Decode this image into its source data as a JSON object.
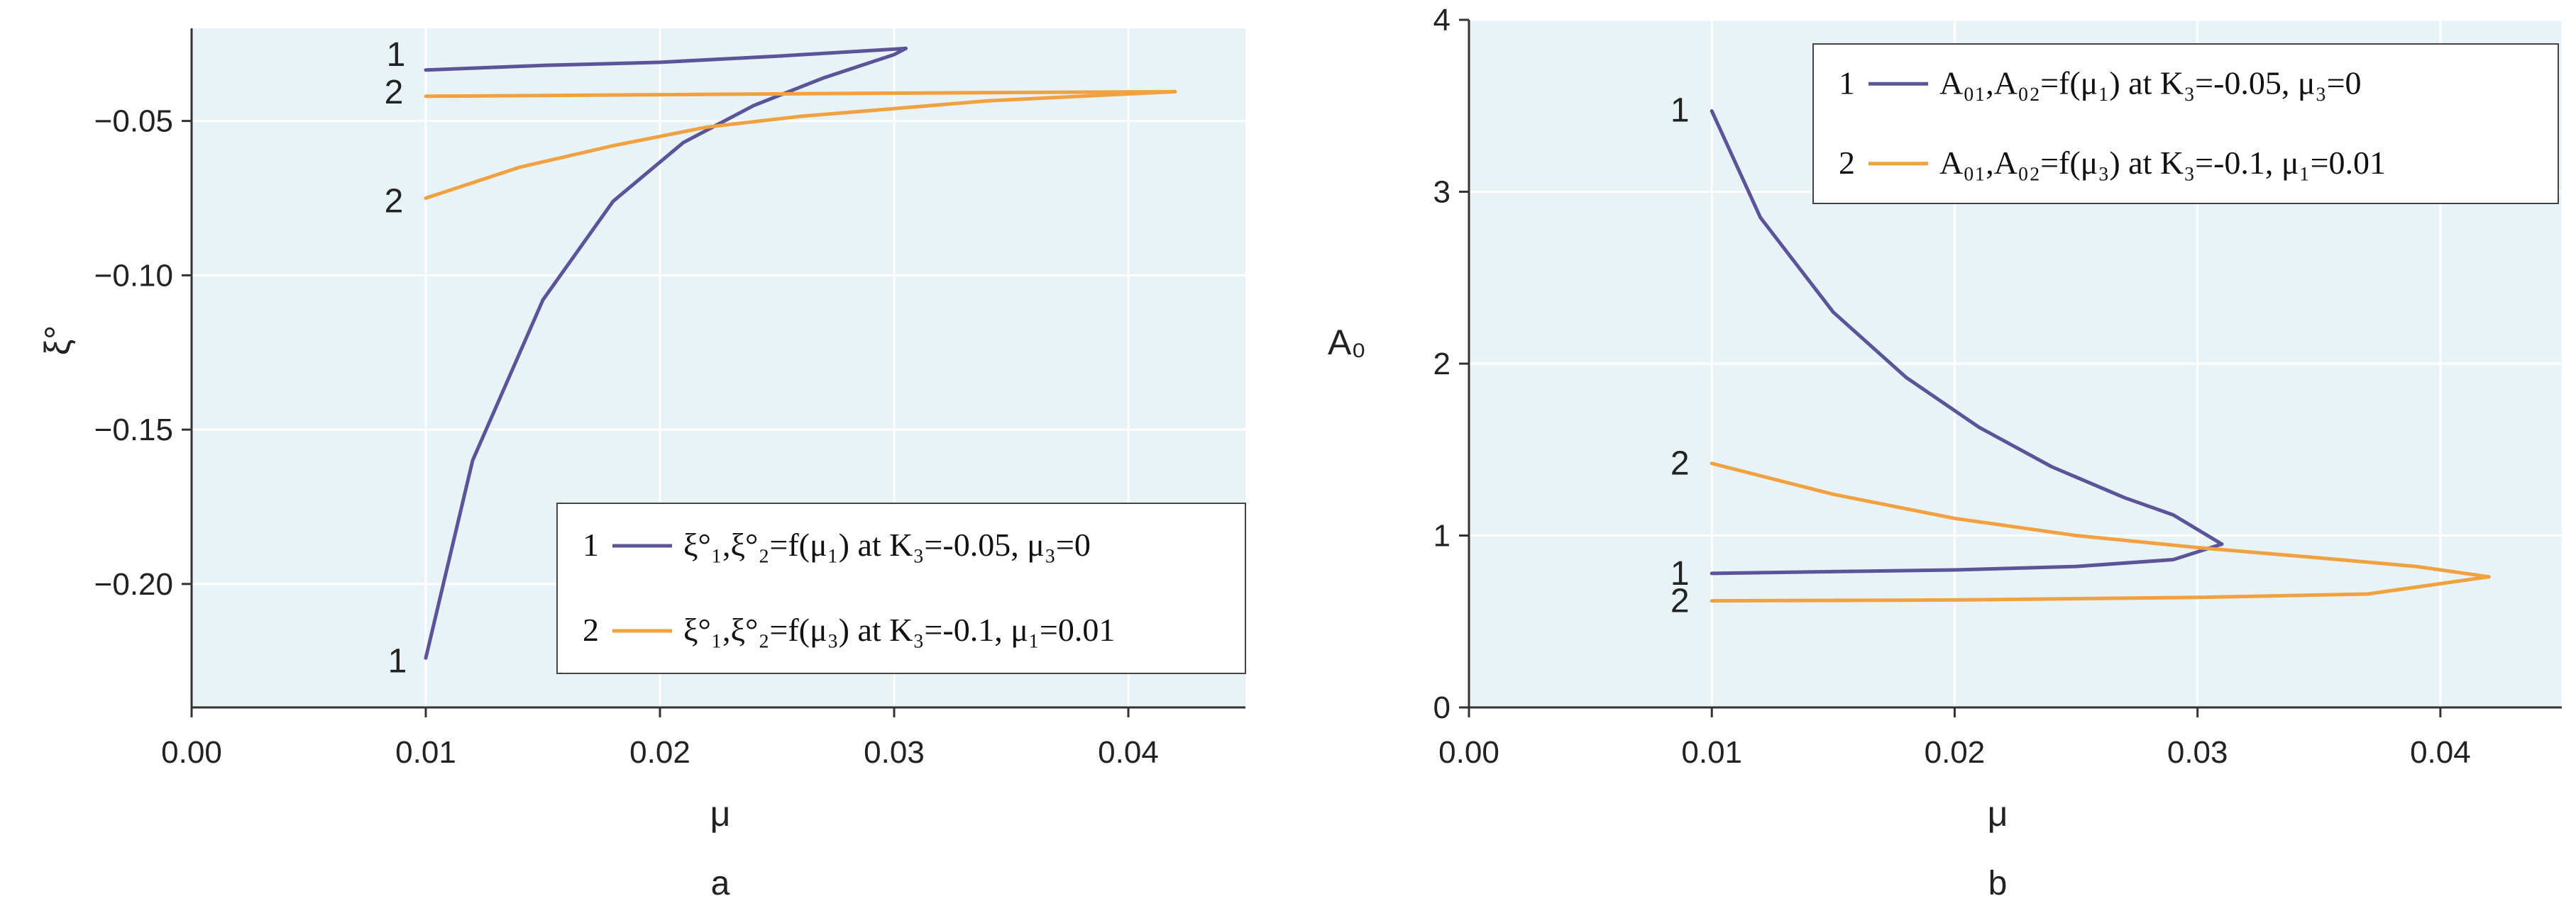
{
  "colors": {
    "series1": "#5b5499",
    "series2": "#f2a141",
    "plot_bg": "#e7f3f6",
    "grid": "#ffffff"
  },
  "chart_data": [
    {
      "type": "line",
      "panel_label": "a",
      "xlabel": "μ",
      "ylabel": "ξ°",
      "xlim": [
        0.0,
        0.045
      ],
      "ylim": [
        -0.24,
        -0.02
      ],
      "xticks": [
        "0.00",
        "0.01",
        "0.02",
        "0.03",
        "0.04"
      ],
      "yticks": [
        "−0.05",
        "−0.10",
        "−0.15",
        "−0.20"
      ],
      "legend_position": "bottom-right",
      "series": [
        {
          "name": "1",
          "legend_number": "1",
          "legend_text": "ξ°₁,ξ°₂=f(μ₁) at K₃=-0.05, μ₃=0",
          "curve_labels": [
            "1",
            "1"
          ],
          "upper": [
            [
              0.01,
              -0.0335
            ],
            [
              0.015,
              -0.032
            ],
            [
              0.02,
              -0.031
            ],
            [
              0.025,
              -0.029
            ],
            [
              0.0305,
              -0.0265
            ]
          ],
          "lower": [
            [
              0.01,
              -0.224
            ],
            [
              0.012,
              -0.16
            ],
            [
              0.015,
              -0.108
            ],
            [
              0.018,
              -0.076
            ],
            [
              0.021,
              -0.057
            ],
            [
              0.024,
              -0.045
            ],
            [
              0.027,
              -0.036
            ],
            [
              0.03,
              -0.0285
            ],
            [
              0.0305,
              -0.0265
            ]
          ]
        },
        {
          "name": "2",
          "legend_number": "2",
          "legend_text": "ξ°₁,ξ°₂=f(μ₃) at K₃=-0.1, μ₁=0.01",
          "curve_labels": [
            "2",
            "2"
          ],
          "upper": [
            [
              0.01,
              -0.042
            ],
            [
              0.02,
              -0.0415
            ],
            [
              0.03,
              -0.041
            ],
            [
              0.042,
              -0.0405
            ]
          ],
          "lower": [
            [
              0.01,
              -0.075
            ],
            [
              0.014,
              -0.065
            ],
            [
              0.018,
              -0.058
            ],
            [
              0.022,
              -0.052
            ],
            [
              0.026,
              -0.0485
            ],
            [
              0.03,
              -0.046
            ],
            [
              0.034,
              -0.0435
            ],
            [
              0.038,
              -0.042
            ],
            [
              0.042,
              -0.0405
            ]
          ]
        }
      ]
    },
    {
      "type": "line",
      "panel_label": "b",
      "xlabel": "μ",
      "ylabel": "A₀",
      "xlim": [
        0.0,
        0.045
      ],
      "ylim": [
        0,
        4
      ],
      "xticks": [
        "0.00",
        "0.01",
        "0.02",
        "0.03",
        "0.04"
      ],
      "yticks": [
        "0",
        "1",
        "2",
        "3",
        "4"
      ],
      "legend_position": "top-right",
      "series": [
        {
          "name": "1",
          "legend_number": "1",
          "legend_text": "A₀₁,A₀₂=f(μ₁) at K₃=-0.05, μ₃=0",
          "curve_labels": [
            "1",
            "1"
          ],
          "upper": [
            [
              0.01,
              3.47
            ],
            [
              0.012,
              2.85
            ],
            [
              0.015,
              2.3
            ],
            [
              0.018,
              1.92
            ],
            [
              0.021,
              1.63
            ],
            [
              0.024,
              1.4
            ],
            [
              0.027,
              1.22
            ],
            [
              0.029,
              1.12
            ],
            [
              0.031,
              0.95
            ]
          ],
          "lower": [
            [
              0.01,
              0.78
            ],
            [
              0.015,
              0.79
            ],
            [
              0.02,
              0.8
            ],
            [
              0.025,
              0.82
            ],
            [
              0.029,
              0.86
            ],
            [
              0.031,
              0.95
            ]
          ]
        },
        {
          "name": "2",
          "legend_number": "2",
          "legend_text": "A₀₁,A₀₂=f(μ₃) at K₃=-0.1, μ₁=0.01",
          "curve_labels": [
            "2",
            "2"
          ],
          "upper": [
            [
              0.01,
              1.42
            ],
            [
              0.015,
              1.24
            ],
            [
              0.02,
              1.1
            ],
            [
              0.025,
              1.0
            ],
            [
              0.03,
              0.93
            ],
            [
              0.035,
              0.87
            ],
            [
              0.039,
              0.82
            ],
            [
              0.042,
              0.76
            ]
          ],
          "lower": [
            [
              0.01,
              0.62
            ],
            [
              0.02,
              0.625
            ],
            [
              0.03,
              0.64
            ],
            [
              0.037,
              0.66
            ],
            [
              0.042,
              0.76
            ]
          ]
        }
      ]
    }
  ]
}
